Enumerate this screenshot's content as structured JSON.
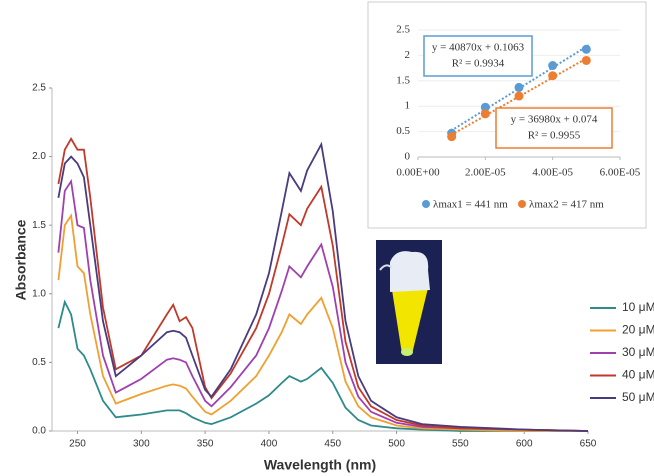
{
  "chart_data": [
    {
      "type": "line",
      "xlabel": "Wavelength (nm)",
      "ylabel": "Absorbance",
      "x": [
        235,
        240,
        245,
        250,
        255,
        260,
        270,
        280,
        300,
        320,
        325,
        330,
        335,
        340,
        350,
        355,
        370,
        390,
        400,
        410,
        416,
        425,
        430,
        441,
        450,
        460,
        470,
        480,
        500,
        520,
        550,
        600,
        650
      ],
      "series": [
        {
          "name": "10 μM",
          "color": "#2e8b8b",
          "values": [
            0.75,
            0.94,
            0.85,
            0.6,
            0.55,
            0.45,
            0.22,
            0.1,
            0.12,
            0.15,
            0.15,
            0.15,
            0.13,
            0.1,
            0.06,
            0.05,
            0.1,
            0.2,
            0.26,
            0.35,
            0.4,
            0.36,
            0.38,
            0.46,
            0.35,
            0.17,
            0.08,
            0.04,
            0.02,
            0.01,
            0,
            0,
            0
          ]
        },
        {
          "name": "20 μM",
          "color": "#f0a030",
          "values": [
            1.1,
            1.5,
            1.57,
            1.2,
            1.15,
            0.85,
            0.4,
            0.2,
            0.27,
            0.33,
            0.34,
            0.33,
            0.31,
            0.25,
            0.14,
            0.12,
            0.22,
            0.4,
            0.55,
            0.72,
            0.85,
            0.78,
            0.85,
            0.97,
            0.75,
            0.36,
            0.18,
            0.1,
            0.04,
            0.02,
            0.01,
            0,
            0
          ]
        },
        {
          "name": "30 μM",
          "color": "#a040b0",
          "values": [
            1.3,
            1.75,
            1.82,
            1.5,
            1.48,
            1.1,
            0.55,
            0.28,
            0.38,
            0.52,
            0.53,
            0.52,
            0.5,
            0.4,
            0.22,
            0.18,
            0.32,
            0.55,
            0.75,
            1.02,
            1.2,
            1.12,
            1.2,
            1.36,
            1.05,
            0.5,
            0.25,
            0.14,
            0.06,
            0.03,
            0.02,
            0.01,
            0
          ]
        },
        {
          "name": "40 μM",
          "color": "#c0392b",
          "values": [
            1.8,
            2.05,
            2.13,
            2.05,
            2.05,
            1.7,
            0.9,
            0.45,
            0.55,
            0.85,
            0.92,
            0.8,
            0.83,
            0.75,
            0.32,
            0.24,
            0.42,
            0.75,
            1.0,
            1.35,
            1.58,
            1.5,
            1.62,
            1.78,
            1.35,
            0.65,
            0.32,
            0.18,
            0.08,
            0.04,
            0.02,
            0.01,
            0
          ]
        },
        {
          "name": "50 μM",
          "color": "#4a3a80",
          "values": [
            1.7,
            1.95,
            2.0,
            1.95,
            1.85,
            1.5,
            0.8,
            0.4,
            0.55,
            0.72,
            0.73,
            0.72,
            0.68,
            0.55,
            0.3,
            0.25,
            0.45,
            0.85,
            1.15,
            1.6,
            1.88,
            1.75,
            1.9,
            2.09,
            1.6,
            0.8,
            0.4,
            0.22,
            0.1,
            0.05,
            0.03,
            0.01,
            0
          ]
        }
      ],
      "xlim": [
        230,
        650
      ],
      "xticks": [
        250,
        300,
        350,
        400,
        450,
        500,
        550,
        600,
        650
      ],
      "ylim": [
        0,
        2.5
      ],
      "yticks": [
        {
          "value": 0,
          "label": "0.0"
        },
        0.5,
        {
          "value": 1,
          "label": "1.0"
        },
        1.5,
        {
          "value": 2,
          "label": "2.0"
        },
        2.5
      ],
      "legend": "right"
    },
    {
      "type": "scatter",
      "series": [
        {
          "name": "λmax1 = 441 nm",
          "color": "#5b9bd5",
          "x": [
            1e-05,
            2e-05,
            3e-05,
            4e-05,
            5e-05
          ],
          "values": [
            0.47,
            0.98,
            1.37,
            1.8,
            2.12
          ]
        },
        {
          "name": "λmax2 = 417 nm",
          "color": "#ed7d31",
          "x": [
            1e-05,
            2e-05,
            3e-05,
            4e-05,
            5e-05
          ],
          "values": [
            0.4,
            0.85,
            1.2,
            1.6,
            1.9
          ]
        }
      ],
      "annotations": [
        {
          "lines": [
            "y = 40870x + 0.1063",
            "R² = 0.9934"
          ],
          "color": "#5b9bd5"
        },
        {
          "lines": [
            "y = 36980x + 0.074",
            "R² = 0.9955"
          ],
          "color": "#ed7d31"
        }
      ],
      "xlim": [
        0,
        6e-05
      ],
      "xticks": [
        {
          "value": 0,
          "label": "0.00E+00"
        },
        {
          "value": 2e-05,
          "label": "2.00E-05"
        },
        {
          "value": 4e-05,
          "label": "4.00E-05"
        },
        {
          "value": 6e-05,
          "label": "6.00E-05"
        }
      ],
      "ylim": [
        0,
        2.5
      ],
      "yticks": [
        0,
        0.5,
        1,
        1.5,
        2,
        2.5
      ],
      "grid": true,
      "legend": "bottom"
    }
  ]
}
